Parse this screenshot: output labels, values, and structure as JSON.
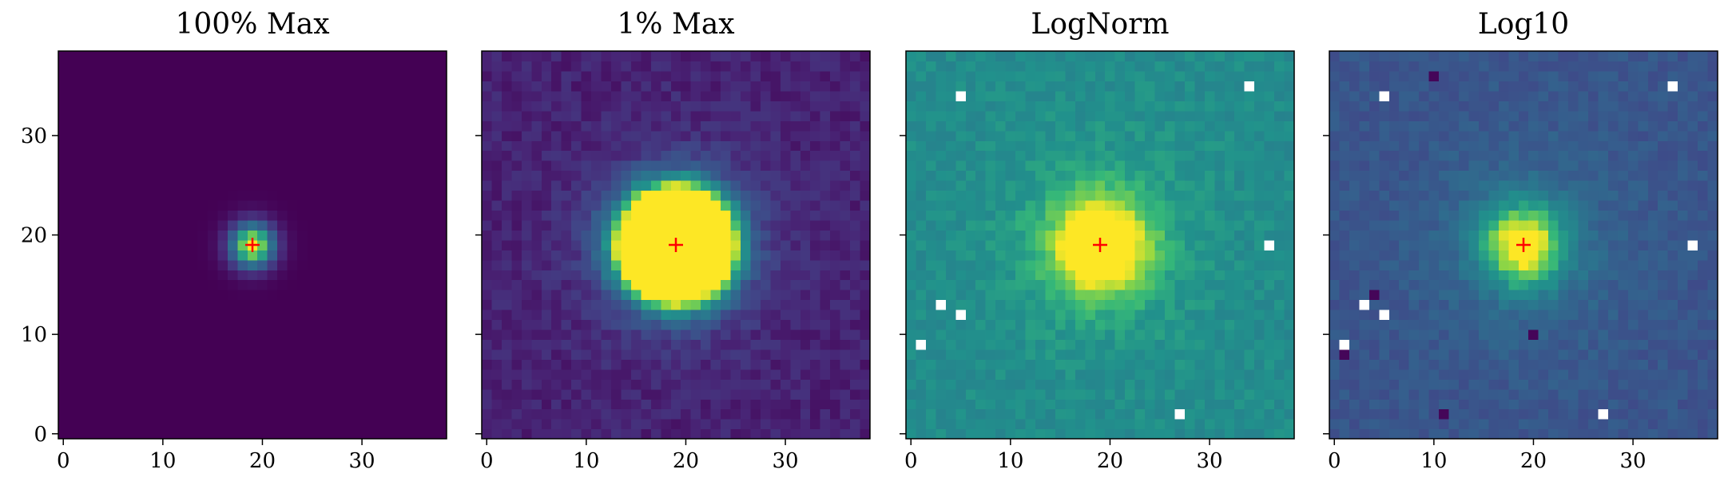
{
  "chart_data": [
    {
      "type": "heatmap",
      "title": "100% Max",
      "grid_size": [
        39,
        39
      ],
      "x_ticks": [
        0,
        10,
        20,
        30
      ],
      "y_ticks": [
        0,
        10,
        20,
        30
      ],
      "xlim": [
        -0.5,
        38.5
      ],
      "ylim": [
        -0.5,
        38.5
      ],
      "y_tick_labels_shown": true,
      "marker": {
        "x": 19,
        "y": 19,
        "symbol": "+",
        "color": "#ff0000"
      },
      "colormap": "viridis",
      "background_level": 0.0,
      "source": {
        "x": 19,
        "y": 19,
        "sigma": 1.6,
        "peak_level": 1.0
      },
      "halo": {
        "sigma": 6,
        "level": 0.0
      },
      "noise": 0.0,
      "saturation_level": 1.0,
      "white_pixels": []
    },
    {
      "type": "heatmap",
      "title": "1% Max",
      "grid_size": [
        39,
        39
      ],
      "x_ticks": [
        0,
        10,
        20,
        30
      ],
      "y_ticks": [
        0,
        10,
        20,
        30
      ],
      "xlim": [
        -0.5,
        38.5
      ],
      "ylim": [
        -0.5,
        38.5
      ],
      "y_tick_labels_shown": false,
      "marker": {
        "x": 19,
        "y": 19,
        "symbol": "+",
        "color": "#ff0000"
      },
      "colormap": "viridis",
      "background_level": 0.12,
      "source": {
        "x": 19,
        "y": 19,
        "sigma": 3.2,
        "peak_level": 4.0
      },
      "halo": {
        "sigma": 6.5,
        "level": 0.2
      },
      "noise": 0.06,
      "saturation_level": 1.0,
      "white_pixels": []
    },
    {
      "type": "heatmap",
      "title": "LogNorm",
      "grid_size": [
        39,
        39
      ],
      "x_ticks": [
        0,
        10,
        20,
        30
      ],
      "y_ticks": [
        0,
        10,
        20,
        30
      ],
      "xlim": [
        -0.5,
        38.5
      ],
      "ylim": [
        -0.5,
        38.5
      ],
      "y_tick_labels_shown": false,
      "marker": {
        "x": 19,
        "y": 19,
        "symbol": "+",
        "color": "#ff0000"
      },
      "colormap": "viridis",
      "background_level": 0.6,
      "source": {
        "x": 19,
        "y": 19,
        "sigma": 3.2,
        "peak_level": 0.55
      },
      "halo": {
        "sigma": 7,
        "level": 0.12
      },
      "noise": 0.05,
      "saturation_level": 1.0,
      "white_pixels": [
        [
          5,
          34
        ],
        [
          34,
          35
        ],
        [
          36,
          19
        ],
        [
          3,
          13
        ],
        [
          5,
          12
        ],
        [
          1,
          9
        ],
        [
          27,
          2
        ]
      ]
    },
    {
      "type": "heatmap",
      "title": "Log10",
      "grid_size": [
        39,
        39
      ],
      "x_ticks": [
        0,
        10,
        20,
        30
      ],
      "y_ticks": [
        0,
        10,
        20,
        30
      ],
      "xlim": [
        -0.5,
        38.5
      ],
      "ylim": [
        -0.5,
        38.5
      ],
      "y_tick_labels_shown": false,
      "marker": {
        "x": 19,
        "y": 19,
        "symbol": "+",
        "color": "#ff0000"
      },
      "colormap": "viridis",
      "background_level": 0.33,
      "source": {
        "x": 19,
        "y": 19,
        "sigma": 2.9,
        "peak_level": 0.65
      },
      "halo": {
        "sigma": 7,
        "level": 0.12
      },
      "noise": 0.05,
      "saturation_level": 1.0,
      "white_pixels": [
        [
          5,
          34
        ],
        [
          34,
          35
        ],
        [
          36,
          19
        ],
        [
          3,
          13
        ],
        [
          5,
          12
        ],
        [
          1,
          9
        ],
        [
          27,
          2
        ]
      ],
      "dark_pixels": [
        [
          1,
          8
        ],
        [
          4,
          14
        ],
        [
          11,
          2
        ],
        [
          10,
          36
        ],
        [
          20,
          10
        ]
      ]
    }
  ]
}
